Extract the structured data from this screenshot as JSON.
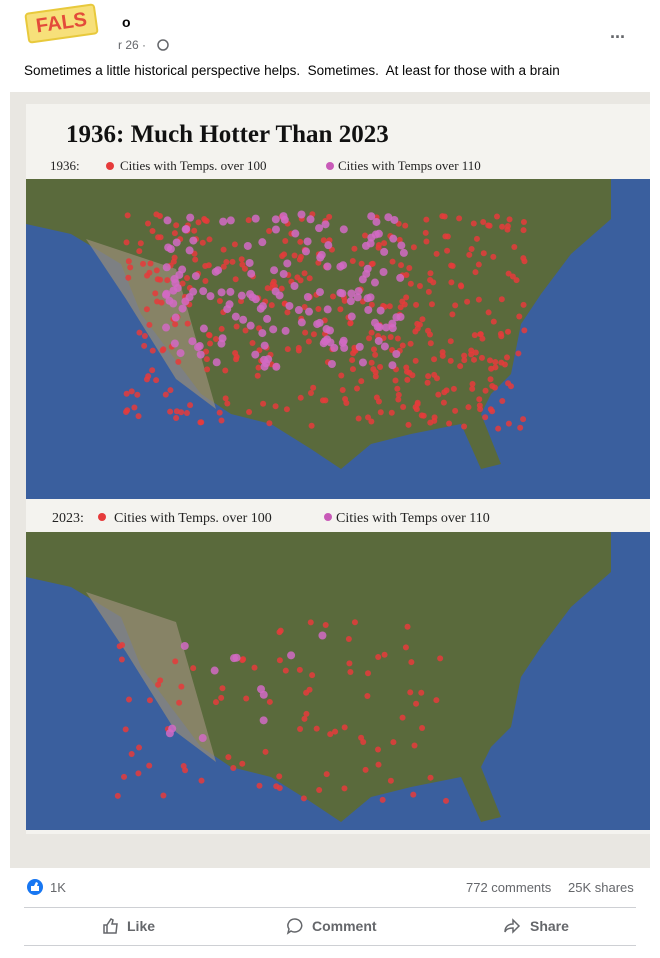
{
  "post": {
    "badge": "FALS",
    "author": "o",
    "timestamp": "r 26 ·",
    "menu": "...",
    "text": "Sometimes a little historical perspective helps.  Sometimes.  At least for those with a brain"
  },
  "image": {
    "title": "1936: Much Hotter Than 2023",
    "legends": [
      {
        "year": "1936:",
        "over_100": "Cities with Temps. over 100",
        "over_110": "Cities with Temps over 110"
      },
      {
        "year": "2023:",
        "over_100": "Cities with Temps. over 100",
        "over_110": "Cities with Temps over 110"
      }
    ]
  },
  "footer": {
    "reactions": "1K",
    "comments": "772 comments",
    "shares": "25K shares"
  },
  "actions": [
    "Like",
    "Comment",
    "Share"
  ]
}
